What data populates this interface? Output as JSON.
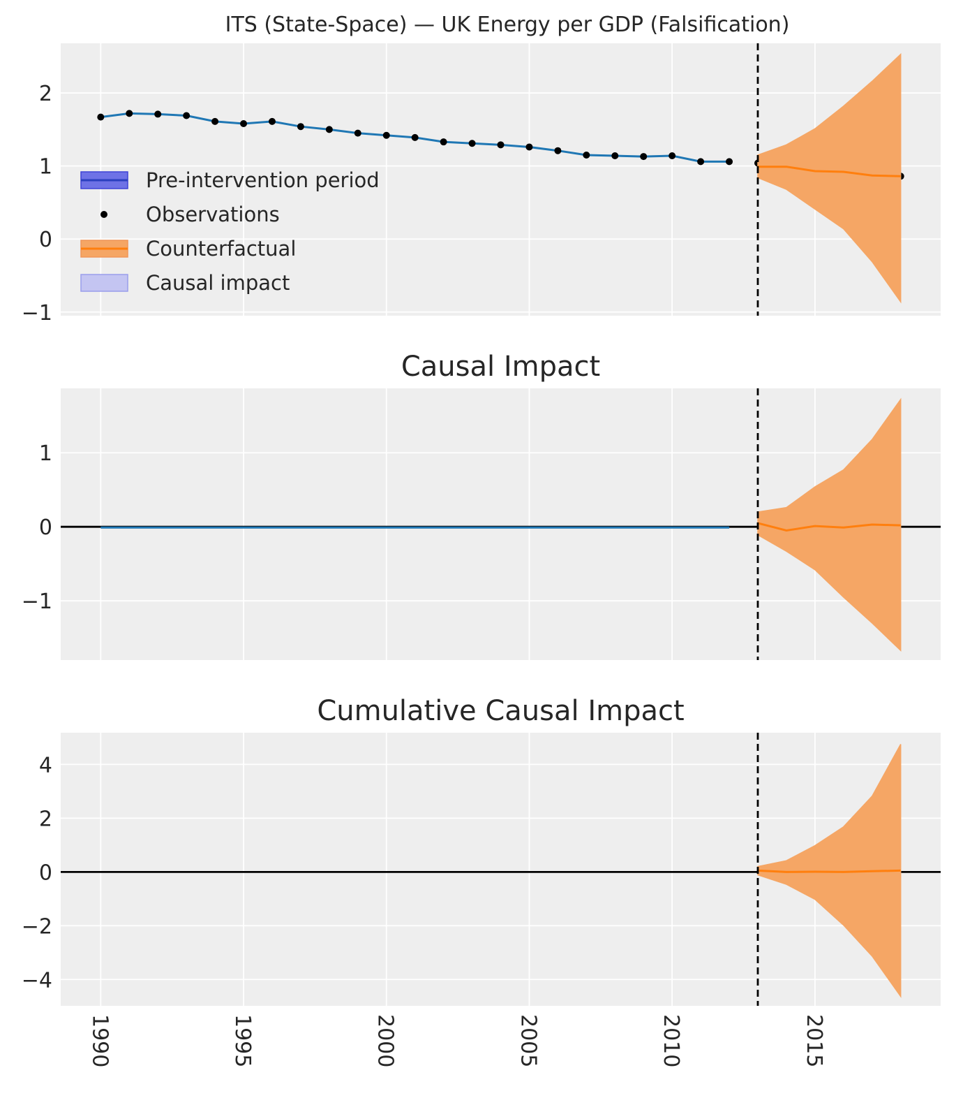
{
  "figure": {
    "title": "ITS (State-Space) — UK Energy per GDP (Falsification)"
  },
  "colors": {
    "background": "#eeeeee",
    "grid": "#ffffff",
    "pre_line": "#1f77b4",
    "counterfactual": "#ff7f0e",
    "band": "#f5a665",
    "legend_pre_patch": "#6e72e6",
    "legend_impact_patch": "#c4c5f2",
    "observations": "#000000"
  },
  "legend": {
    "items": [
      {
        "label": "Pre-intervention period",
        "icon": "patch-line"
      },
      {
        "label": "Observations",
        "icon": "dot"
      },
      {
        "label": "Counterfactual",
        "icon": "patch-line"
      },
      {
        "label": "Causal impact",
        "icon": "patch"
      }
    ]
  },
  "chart_data": [
    {
      "type": "line",
      "title": "ITS (State-Space) — UK Energy per GDP (Falsification)",
      "xlabel": "",
      "ylabel": "",
      "grid": true,
      "legend_position": "center-left",
      "intervention_x": 2013,
      "x": [
        1990,
        1991,
        1992,
        1993,
        1994,
        1995,
        1996,
        1997,
        1998,
        1999,
        2000,
        2001,
        2002,
        2003,
        2004,
        2005,
        2006,
        2007,
        2008,
        2009,
        2010,
        2011,
        2012,
        2013,
        2014,
        2015,
        2016,
        2017,
        2018
      ],
      "xlim": [
        1988.6,
        2019.4
      ],
      "ylim": [
        -1.05,
        2.68
      ],
      "yticks": [
        -1,
        0,
        1,
        2
      ],
      "series": [
        {
          "name": "Pre-intervention period",
          "x": [
            1990,
            1991,
            1992,
            1993,
            1994,
            1995,
            1996,
            1997,
            1998,
            1999,
            2000,
            2001,
            2002,
            2003,
            2004,
            2005,
            2006,
            2007,
            2008,
            2009,
            2010,
            2011,
            2012
          ],
          "values": [
            1.67,
            1.72,
            1.71,
            1.69,
            1.61,
            1.58,
            1.61,
            1.54,
            1.5,
            1.45,
            1.42,
            1.39,
            1.33,
            1.31,
            1.29,
            1.26,
            1.21,
            1.15,
            1.14,
            1.13,
            1.14,
            1.06,
            1.06
          ]
        },
        {
          "name": "Observations",
          "x": [
            1990,
            1991,
            1992,
            1993,
            1994,
            1995,
            1996,
            1997,
            1998,
            1999,
            2000,
            2001,
            2002,
            2003,
            2004,
            2005,
            2006,
            2007,
            2008,
            2009,
            2010,
            2011,
            2012,
            2013,
            2014,
            2015,
            2016,
            2017,
            2018
          ],
          "values": [
            1.67,
            1.72,
            1.71,
            1.69,
            1.61,
            1.58,
            1.61,
            1.54,
            1.5,
            1.45,
            1.42,
            1.39,
            1.33,
            1.31,
            1.29,
            1.26,
            1.21,
            1.15,
            1.14,
            1.13,
            1.14,
            1.06,
            1.06,
            1.04,
            0.96,
            0.94,
            0.91,
            0.88,
            0.86
          ]
        },
        {
          "name": "Counterfactual",
          "x": [
            2013,
            2014,
            2015,
            2016,
            2017,
            2018
          ],
          "values": [
            0.99,
            0.99,
            0.93,
            0.92,
            0.87,
            0.86
          ],
          "lower": [
            0.84,
            0.68,
            0.41,
            0.14,
            -0.31,
            -0.86
          ],
          "upper": [
            1.15,
            1.29,
            1.51,
            1.82,
            2.16,
            2.53
          ]
        }
      ]
    },
    {
      "type": "line",
      "title": "Causal Impact",
      "xlabel": "",
      "ylabel": "",
      "grid": true,
      "intervention_x": 2013,
      "xlim": [
        1988.6,
        2019.4
      ],
      "ylim": [
        -1.8,
        1.87
      ],
      "yticks": [
        -1,
        0,
        1
      ],
      "series": [
        {
          "name": "Causal impact (pre)",
          "x": [
            1990,
            2012
          ],
          "values": [
            -0.01,
            -0.01
          ]
        },
        {
          "name": "Causal impact",
          "x": [
            2013,
            2014,
            2015,
            2016,
            2017,
            2018
          ],
          "values": [
            0.05,
            -0.05,
            0.01,
            -0.01,
            0.03,
            0.02
          ],
          "lower": [
            -0.11,
            -0.33,
            -0.58,
            -0.95,
            -1.3,
            -1.67
          ],
          "upper": [
            0.2,
            0.26,
            0.54,
            0.77,
            1.18,
            1.72
          ]
        }
      ]
    },
    {
      "type": "line",
      "title": "Cumulative Causal Impact",
      "xlabel": "",
      "ylabel": "",
      "grid": true,
      "intervention_x": 2013,
      "xlim": [
        1988.6,
        2019.4
      ],
      "ylim": [
        -4.98,
        5.18
      ],
      "yticks": [
        -4,
        -2,
        0,
        2,
        4
      ],
      "xticks": [
        1990,
        1995,
        2000,
        2005,
        2010,
        2015
      ],
      "series": [
        {
          "name": "Cumulative causal impact",
          "x": [
            2013,
            2014,
            2015,
            2016,
            2017,
            2018
          ],
          "values": [
            0.05,
            0.0,
            0.01,
            0.0,
            0.03,
            0.05
          ],
          "lower": [
            -0.11,
            -0.46,
            -1.02,
            -1.98,
            -3.13,
            -4.63
          ],
          "upper": [
            0.2,
            0.42,
            0.98,
            1.68,
            2.82,
            4.75
          ]
        }
      ]
    }
  ]
}
